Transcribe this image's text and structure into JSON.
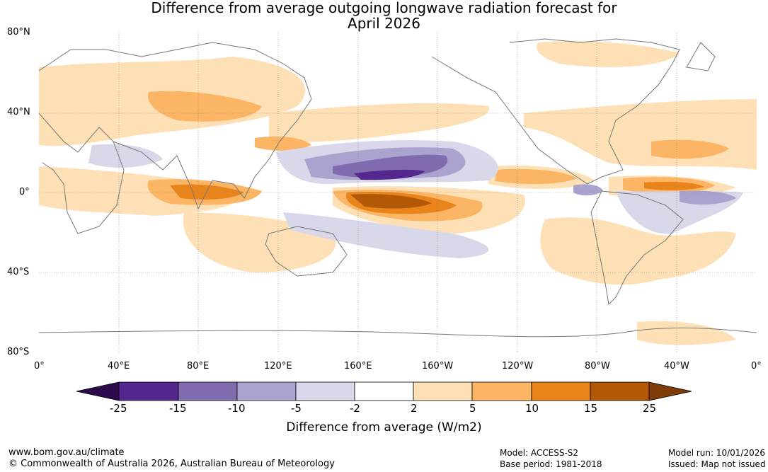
{
  "title": {
    "line1": "Difference from average outgoing longwave radiation forecast for",
    "line2": "April 2026"
  },
  "map": {
    "lat_labels": [
      "80°N",
      "40°N",
      "0°",
      "40°S",
      "80°S"
    ],
    "lon_labels": [
      "0°",
      "40°E",
      "80°E",
      "120°E",
      "160°E",
      "160°W",
      "120°W",
      "80°W",
      "40°W",
      "0°"
    ]
  },
  "colorbar": {
    "title": "Difference from average (W/m2)",
    "ticks": [
      "-25",
      "-15",
      "-10",
      "-5",
      "-2",
      "2",
      "5",
      "10",
      "15",
      "25"
    ],
    "colors": {
      "below_min": "#2d0a4e",
      "c1": "#54278f",
      "c2": "#7f6bad",
      "c3": "#aba3cf",
      "c4": "#d9d8ea",
      "neutral": "#ffffff",
      "w1": "#fde0b5",
      "w2": "#fbb565",
      "w3": "#e8841a",
      "w4": "#b35806",
      "above_max": "#7f3b08"
    }
  },
  "footer": {
    "url": "www.bom.gov.au/climate",
    "copyright": "© Commonwealth of Australia 2026, Australian Bureau of Meteorology",
    "model": "Model: ACCESS-S2",
    "base_period": "Base period: 1981-2018",
    "model_run": "Model run: 10/01/2026",
    "issued": "Issued: Map not issued"
  }
}
